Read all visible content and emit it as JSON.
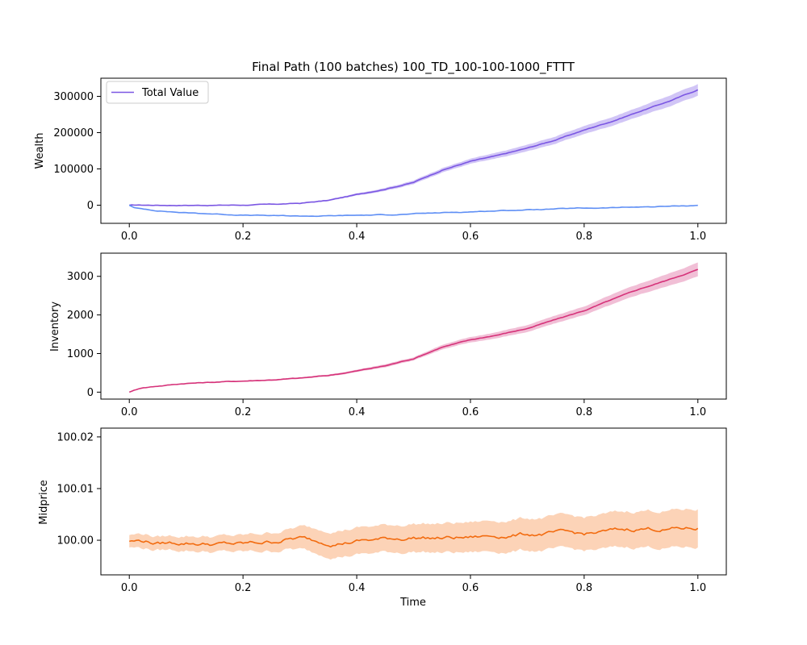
{
  "title": "Final Path (100 batches) 100_TD_100-100-1000_FTTT",
  "xlabel": "Time",
  "colors": {
    "total_value": "#7b57e3",
    "total_value_band": "#c9bbf4",
    "cash": "#5f8ff5",
    "inventory": "#d6337a",
    "inventory_band": "#efb4cf",
    "midprice": "#f26b0f",
    "midprice_band": "#fbcbaa"
  },
  "chart_data": [
    {
      "type": "line",
      "ylabel": "Wealth",
      "xlim": [
        -0.05,
        1.05
      ],
      "ylim": [
        -50000,
        350000
      ],
      "xticks": [
        0.0,
        0.2,
        0.4,
        0.6,
        0.8,
        1.0
      ],
      "xtick_labels": [
        "0.0",
        "0.2",
        "0.4",
        "0.6",
        "0.8",
        "1.0"
      ],
      "yticks": [
        0,
        100000,
        200000,
        300000
      ],
      "ytick_labels": [
        "0",
        "100000",
        "200000",
        "300000"
      ],
      "legend": {
        "position": "top-left",
        "entries": [
          "Total Value"
        ]
      },
      "series": [
        {
          "name": "Total Value",
          "x": [
            0.0,
            0.05,
            0.1,
            0.15,
            0.2,
            0.25,
            0.3,
            0.35,
            0.4,
            0.45,
            0.5,
            0.55,
            0.6,
            0.65,
            0.7,
            0.75,
            0.8,
            0.85,
            0.9,
            0.95,
            1.0
          ],
          "y": [
            0,
            0,
            0,
            0,
            500,
            2000,
            5000,
            13000,
            29000,
            45000,
            63000,
            97000,
            121000,
            137000,
            157000,
            180000,
            207000,
            232000,
            260000,
            287000,
            318000
          ],
          "y_lower": [
            0,
            0,
            0,
            0,
            0,
            1000,
            3500,
            11000,
            26000,
            41000,
            58000,
            91000,
            114000,
            129000,
            148000,
            170000,
            196000,
            220000,
            247000,
            272000,
            302000
          ],
          "y_upper": [
            0,
            0,
            0,
            0,
            1000,
            3000,
            6500,
            15000,
            32000,
            49000,
            68000,
            103000,
            128000,
            145000,
            166000,
            190000,
            218000,
            244000,
            273000,
            302000,
            334000
          ]
        },
        {
          "x": [
            0.0,
            0.01,
            0.05,
            0.1,
            0.15,
            0.2,
            0.25,
            0.3,
            0.35,
            0.4,
            0.45,
            0.5,
            0.55,
            0.6,
            0.65,
            0.7,
            0.75,
            0.8,
            0.85,
            0.9,
            0.95,
            1.0
          ],
          "y": [
            0,
            -8000,
            -15000,
            -21000,
            -24000,
            -27000,
            -29000,
            -30000,
            -29500,
            -28000,
            -26500,
            -24000,
            -21000,
            -18000,
            -15000,
            -12500,
            -10500,
            -8500,
            -7000,
            -5000,
            -3000,
            -500
          ]
        }
      ]
    },
    {
      "type": "line",
      "ylabel": "Inventory",
      "xlim": [
        -0.05,
        1.05
      ],
      "ylim": [
        -180,
        3600
      ],
      "xticks": [
        0.0,
        0.2,
        0.4,
        0.6,
        0.8,
        1.0
      ],
      "xtick_labels": [
        "0.0",
        "0.2",
        "0.4",
        "0.6",
        "0.8",
        "1.0"
      ],
      "yticks": [
        0,
        1000,
        2000,
        3000
      ],
      "ytick_labels": [
        "0",
        "1000",
        "2000",
        "3000"
      ],
      "series": [
        {
          "x": [
            0.0,
            0.02,
            0.05,
            0.1,
            0.15,
            0.2,
            0.25,
            0.3,
            0.35,
            0.4,
            0.45,
            0.5,
            0.55,
            0.6,
            0.65,
            0.7,
            0.75,
            0.8,
            0.85,
            0.9,
            0.95,
            1.0
          ],
          "y": [
            0,
            110,
            160,
            230,
            260,
            290,
            320,
            360,
            430,
            550,
            680,
            870,
            1170,
            1350,
            1490,
            1650,
            1880,
            2110,
            2400,
            2680,
            2920,
            3180
          ],
          "y_lower": [
            0,
            100,
            150,
            215,
            245,
            272,
            300,
            340,
            405,
            520,
            640,
            830,
            1110,
            1280,
            1410,
            1560,
            1780,
            2000,
            2270,
            2540,
            2760,
            3000
          ],
          "y_upper": [
            0,
            120,
            170,
            245,
            275,
            308,
            340,
            380,
            455,
            580,
            720,
            910,
            1230,
            1420,
            1570,
            1740,
            1980,
            2220,
            2530,
            2820,
            3080,
            3360
          ]
        }
      ]
    },
    {
      "type": "line",
      "ylabel": "Midprice",
      "xlim": [
        -0.05,
        1.05
      ],
      "ylim": [
        99.9933,
        100.0217
      ],
      "xticks": [
        0.0,
        0.2,
        0.4,
        0.6,
        0.8,
        1.0
      ],
      "xtick_labels": [
        "0.0",
        "0.2",
        "0.4",
        "0.6",
        "0.8",
        "1.0"
      ],
      "yticks": [
        100.0,
        100.01,
        100.02
      ],
      "ytick_labels": [
        "100.00",
        "100.01",
        "100.02"
      ],
      "series": [
        {
          "x": [
            0.0,
            0.025,
            0.05,
            0.1,
            0.15,
            0.2,
            0.25,
            0.28,
            0.3,
            0.33,
            0.36,
            0.4,
            0.45,
            0.5,
            0.55,
            0.6,
            0.65,
            0.7,
            0.75,
            0.8,
            0.85,
            0.9,
            0.95,
            1.0
          ],
          "y": [
            99.9998,
            99.9999,
            99.9994,
            99.9996,
            99.9993,
            99.9992,
            99.9997,
            100.0003,
            100.0004,
            99.9998,
            99.9996,
            99.9999,
            100.0002,
            100.0006,
            100.0004,
            100.0005,
            100.0009,
            100.0012,
            100.0013,
            100.0011,
            100.0017,
            100.0023,
            100.0022,
            100.0023
          ],
          "y_lower": [
            99.9986,
            99.9985,
            99.9981,
            99.9982,
            99.9978,
            99.9976,
            99.9979,
            99.9984,
            99.9982,
            99.9974,
            99.9971,
            99.9973,
            99.9976,
            99.9979,
            99.9976,
            99.9976,
            99.9979,
            99.9981,
            99.9981,
            99.9979,
            99.9983,
            99.9988,
            99.9986,
            99.9986
          ],
          "y_upper": [
            100.001,
            100.0013,
            100.0007,
            100.001,
            100.0008,
            100.0008,
            100.0015,
            100.0022,
            100.0026,
            100.0022,
            100.0021,
            100.0025,
            100.0028,
            100.0033,
            100.0032,
            100.0034,
            100.0039,
            100.0043,
            100.0045,
            100.0043,
            100.0051,
            100.0058,
            100.0058,
            100.006
          ]
        }
      ]
    }
  ]
}
